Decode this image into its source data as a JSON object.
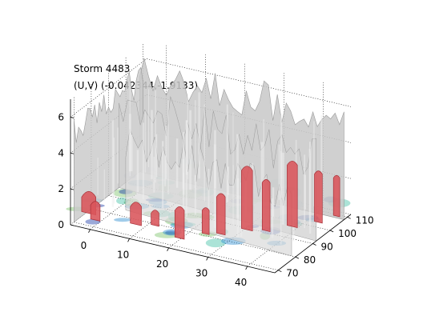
{
  "figure": {
    "title_line_1": "Storm 4483",
    "title_line_2": "(U,V) (-0.042344,-1.9133)"
  },
  "chart_data": {
    "type": "surface3d",
    "title": "Storm 4483",
    "subtitle": "(U,V) (-0.042344,-1.9133)",
    "xlabel": "",
    "ylabel": "",
    "zlabel": "",
    "x_ticks": [
      0,
      10,
      20,
      30,
      40
    ],
    "y_ticks": [
      70,
      80,
      90,
      100,
      110
    ],
    "z_ticks": [
      0,
      2,
      4,
      6
    ],
    "xlim": [
      -5,
      47
    ],
    "ylim": [
      68,
      112
    ],
    "zlim": [
      0,
      7
    ],
    "grid": true,
    "colors": {
      "outer_isosurface": "#c8c8c8",
      "outer_isosurface_edge": "#9a9a9a",
      "core_isosurface": "#d9545a",
      "core_isosurface_edge": "#a83038",
      "low_level_shading": [
        "#1f3da8",
        "#2f8ed1",
        "#45c0a6",
        "#7cc46a"
      ]
    }
  }
}
